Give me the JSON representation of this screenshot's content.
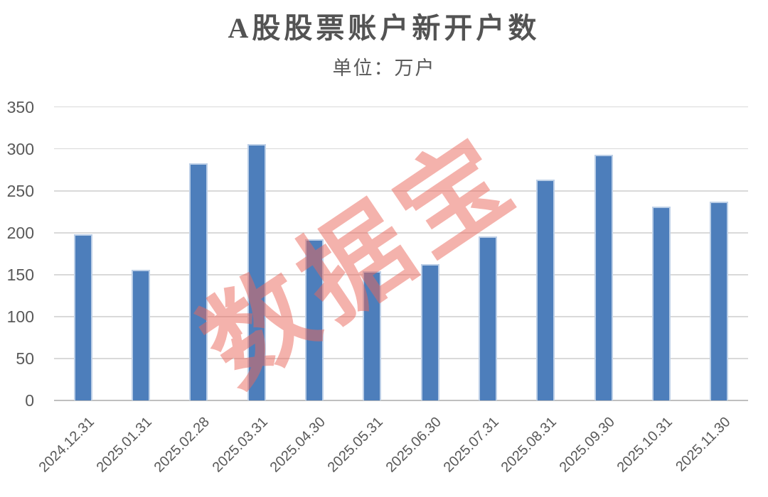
{
  "chart_data": {
    "type": "bar",
    "title": "A股股票账户新开户数",
    "subtitle": "单位：万户",
    "categories": [
      "2024.12.31",
      "2025.01.31",
      "2025.02.28",
      "2025.03.31",
      "2025.04.30",
      "2025.05.31",
      "2025.06.30",
      "2025.07.31",
      "2025.08.31",
      "2025.09.30",
      "2025.10.31",
      "2025.11.30"
    ],
    "values": [
      198,
      156,
      283,
      306,
      192,
      154,
      163,
      196,
      263,
      293,
      231,
      237
    ],
    "xlabel": "",
    "ylabel": "",
    "ylim": [
      0,
      350
    ],
    "y_ticks": [
      0,
      50,
      100,
      150,
      200,
      250,
      300,
      350
    ],
    "grid": true,
    "legend": "none",
    "bar_color": "#4d7ebb",
    "bar_edge_color": "#bccfe7",
    "gridline_color": "#d9d9d9",
    "axis_text_color": "#595959",
    "title_color": "#535353",
    "watermark": {
      "text": "数据宝",
      "color": "#eb675b",
      "opacity": 0.5,
      "angle_deg": -34
    }
  }
}
